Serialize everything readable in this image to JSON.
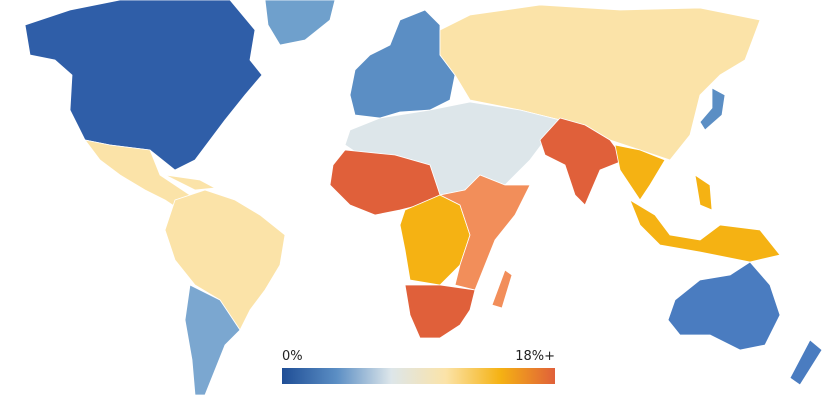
{
  "legend": {
    "min_label": "0%",
    "max_label": "18%+",
    "colors": [
      "#1f4e96",
      "#5b8ec4",
      "#dde6ea",
      "#fbe3a8",
      "#f5b213",
      "#e0603a"
    ]
  }
}
